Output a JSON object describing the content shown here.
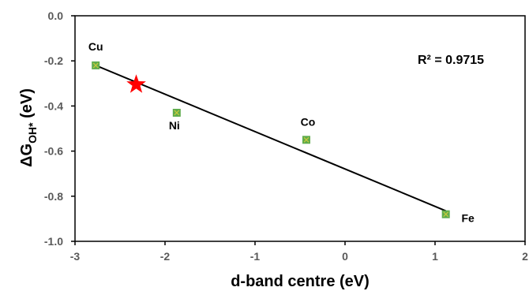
{
  "chart_data": {
    "type": "scatter",
    "xlabel": "d-band centre (eV)",
    "ylabel_main": "ΔG",
    "ylabel_sub": "OH*",
    "ylabel_unit": " (eV)",
    "xlim": [
      -3,
      2
    ],
    "ylim": [
      -1.0,
      0.0
    ],
    "x_ticks": [
      -3,
      -2,
      -1,
      0,
      1,
      2
    ],
    "x_tick_labels": [
      "-3",
      "-2",
      "-1",
      "0",
      "1",
      "2"
    ],
    "y_ticks": [
      0.0,
      -0.2,
      -0.4,
      -0.6,
      -0.8,
      -1.0
    ],
    "y_tick_labels": [
      "0.0",
      "-0.2",
      "-0.4",
      "-0.6",
      "-0.8",
      "-1.0"
    ],
    "points": [
      {
        "label": "Cu",
        "x": -2.77,
        "y": -0.22
      },
      {
        "label": "Ni",
        "x": -1.87,
        "y": -0.43
      },
      {
        "label": "Co",
        "x": -0.43,
        "y": -0.55
      },
      {
        "label": "Fe",
        "x": 1.12,
        "y": -0.88
      }
    ],
    "highlight_point": {
      "x": -2.32,
      "y": -0.305
    },
    "fit_line": {
      "x": [
        -2.77,
        1.12
      ],
      "y": [
        -0.22,
        -0.865
      ]
    },
    "annotation": "R² = 0.9715",
    "grid": false,
    "colors": {
      "marker": "#5fac4c",
      "marker_cross": "#c9c93a",
      "star": "#ff0000",
      "line": "#000000",
      "axis": "#000000"
    }
  }
}
